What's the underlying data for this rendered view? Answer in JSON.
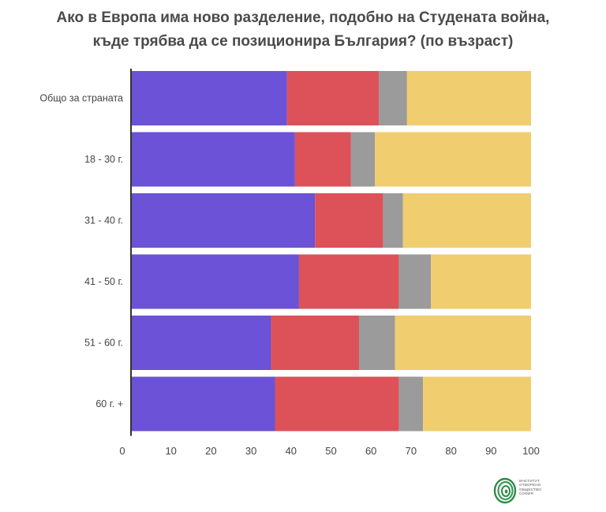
{
  "title_lines": [
    "Ако в Европа има ново разделение, подобно на Студената война,",
    "къде трябва да се позиционира България? (по възраст)"
  ],
  "logo": {
    "lines": [
      "ИНСТИТУТ",
      "ОТВОРЕНО",
      "ОБЩЕСТВО",
      "СОФИЯ"
    ]
  },
  "chart_data": {
    "type": "bar",
    "orientation": "horizontal",
    "stacked": true,
    "title": "Ако в Европа има ново разделение, подобно на Студената война, къде трябва да се позиционира България? (по възраст)",
    "categories": [
      "Общо за страната",
      "18 - 30 г.",
      "31 - 40 г.",
      "41 - 50 г.",
      "51 - 60 г.",
      "60 г. +"
    ],
    "series": [
      {
        "color": "#6b52d6",
        "values": [
          39,
          41,
          46,
          42,
          35,
          36
        ]
      },
      {
        "color": "#dd5158",
        "values": [
          23,
          14,
          17,
          25,
          22,
          31
        ]
      },
      {
        "color": "#9b9b9b",
        "values": [
          7,
          6,
          5,
          8,
          9,
          6
        ]
      },
      {
        "color": "#f0cd6e",
        "values": [
          31,
          39,
          32,
          25,
          34,
          27
        ]
      }
    ],
    "xlim": [
      0,
      100
    ],
    "xticks": [
      "0",
      "10",
      "20",
      "30",
      "40",
      "50",
      "60",
      "70",
      "80",
      "90",
      "100"
    ],
    "legend": "none",
    "grid": false
  }
}
